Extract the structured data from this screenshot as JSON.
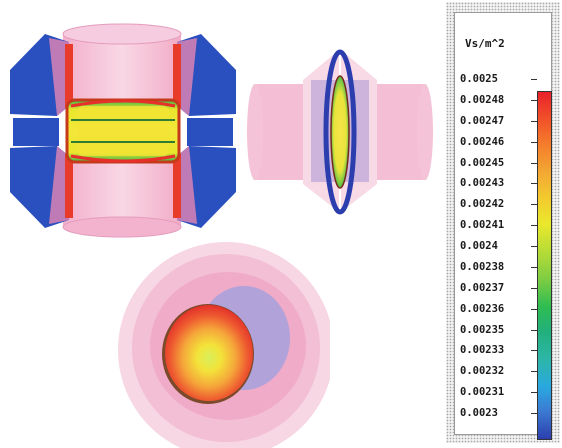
{
  "legend": {
    "unit": "Vs/m^2",
    "labels": [
      "0.0025",
      "0.00248",
      "0.00247",
      "0.00246",
      "0.00245",
      "0.00243",
      "0.00242",
      "0.00241",
      "0.0024",
      "0.00238",
      "0.00237",
      "0.00236",
      "0.00235",
      "0.00233",
      "0.00232",
      "0.00231",
      "0.0023"
    ],
    "colors": [
      "#e8222a",
      "#f47c2c",
      "#eae82c",
      "#2ebc52",
      "#2aa8e0",
      "#2c3eae"
    ]
  }
}
